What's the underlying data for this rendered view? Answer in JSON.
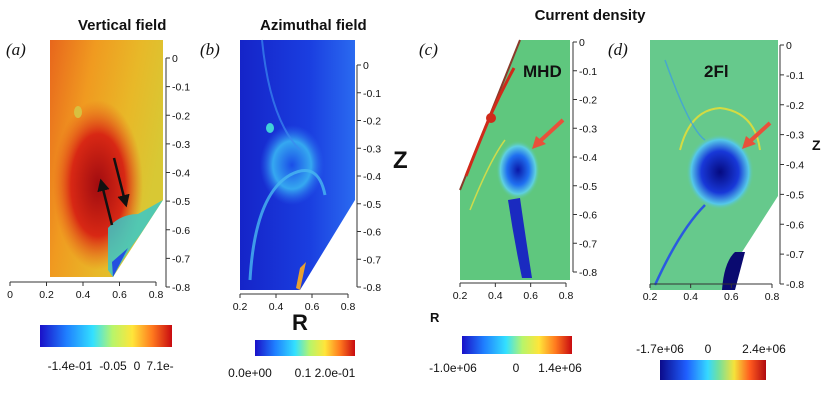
{
  "titles": {
    "a": "Vertical field",
    "b": "Azimuthal  field",
    "cd": "Current density"
  },
  "panel_labels": {
    "a": "(a)",
    "b": "(b)",
    "c": "(c)",
    "d": "(d)"
  },
  "annotations": {
    "mhd": "MHD",
    "twofl": "2Fl"
  },
  "axes": {
    "z_label": "Z",
    "r_label": "R",
    "z_ticks": [
      "0",
      "-0.1",
      "-0.2",
      "-0.3",
      "-0.4",
      "-0.5",
      "-0.6",
      "-0.7",
      "-0.8"
    ],
    "r_ticks_a": [
      "0",
      "0.2",
      "0.4",
      "0.6",
      "0.8"
    ],
    "r_ticks_b": [
      "0.2",
      "0.4",
      "0.6",
      "0.8"
    ],
    "r_ticks_c": [
      "0.2",
      "0.4",
      "0.6",
      "0.8"
    ],
    "r_ticks_d": [
      "0.2",
      "0.4",
      "0.6",
      "0.8"
    ]
  },
  "colorbars": {
    "a": [
      "-1.4e-01",
      "-0.05",
      "0",
      "7.1e-"
    ],
    "b": [
      "0.0e+00",
      "0.1",
      "2.0e-01"
    ],
    "c": [
      "-1.0e+06",
      "0",
      "1.4e+06"
    ],
    "d": [
      "-1.7e+06",
      "0",
      "2.4e+06"
    ]
  },
  "colors": {
    "arrow_red": "#e8503a",
    "arrow_black": "#111111",
    "deep_blue": "#0a1aa0",
    "green_field": "#5fc77e"
  }
}
